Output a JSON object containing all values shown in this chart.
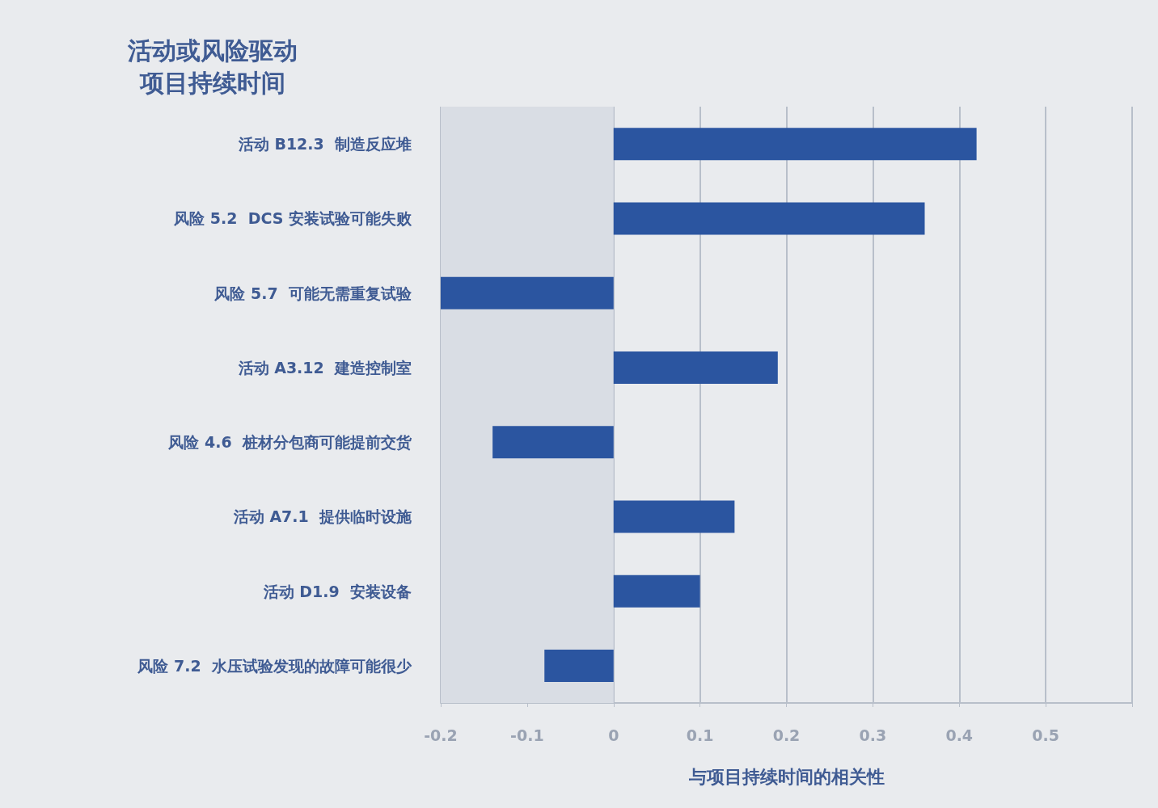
{
  "chart_data": {
    "type": "bar",
    "orientation": "horizontal",
    "ylabel": "活动或风险驱动项目持续时间",
    "xlabel": "与项目持续时间的相关性",
    "categories": [
      "活动 B12.3  制造反应堆",
      "风险 5.2  DCS 安装试验可能失败",
      "风险 5.7  可能无需重复试验",
      "活动 A3.12  建造控制室",
      "风险 4.6  桩材分包商可能提前交货",
      "活动 A7.1  提供临时设施",
      "活动 D1.9  安装设备",
      "风险 7.2  水压试验发现的故障可能很少"
    ],
    "values": [
      0.42,
      0.36,
      -0.2,
      0.19,
      -0.14,
      0.14,
      0.1,
      -0.08
    ],
    "color": "#2b55a0",
    "xlim": [
      -0.2,
      0.6
    ],
    "xticks": [
      -0.2,
      -0.1,
      0,
      0.1,
      0.2,
      0.3,
      0.4,
      0.5,
      {
        "value": 0.6,
        "label": null
      }
    ],
    "bands": [
      {
        "axis": "x",
        "from": -0.2,
        "to": 0,
        "color": "#d9dde4"
      }
    ],
    "grid": "x"
  }
}
